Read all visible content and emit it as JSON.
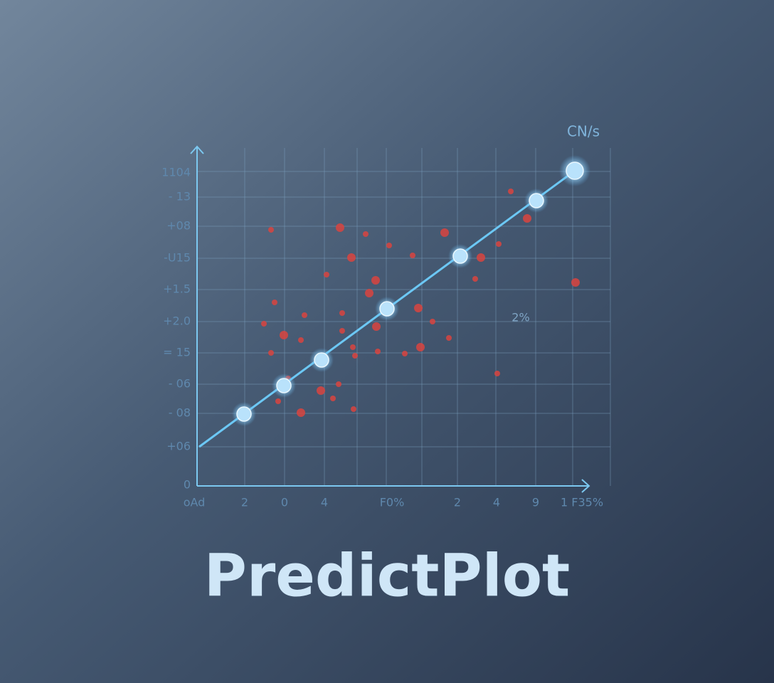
{
  "header": {
    "title": "PredictPlot"
  },
  "chart": {
    "corner_label": "CN/s",
    "annotation": "2%",
    "y_labels": [
      "1104",
      "- 13",
      "+08",
      "-U15",
      "+1.5",
      "+2.0",
      "= 15",
      "- 06",
      "- 08",
      "+06",
      "0"
    ],
    "x_labels": [
      "oAd",
      "2",
      "0",
      "4",
      "F0%",
      "2",
      "4",
      "9",
      "1 F35%"
    ]
  }
}
